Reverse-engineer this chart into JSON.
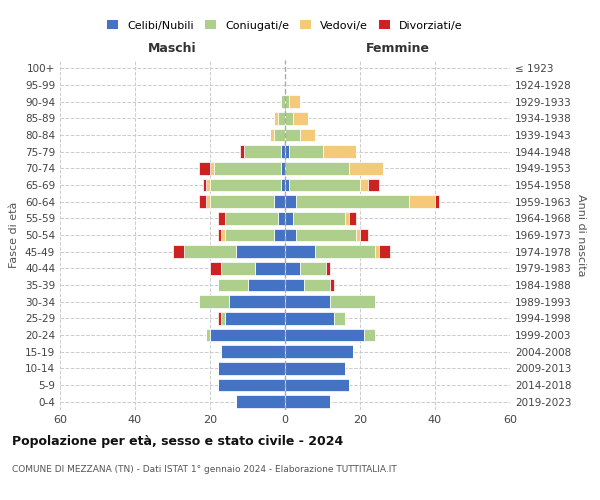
{
  "age_groups": [
    "0-4",
    "5-9",
    "10-14",
    "15-19",
    "20-24",
    "25-29",
    "30-34",
    "35-39",
    "40-44",
    "45-49",
    "50-54",
    "55-59",
    "60-64",
    "65-69",
    "70-74",
    "75-79",
    "80-84",
    "85-89",
    "90-94",
    "95-99",
    "100+"
  ],
  "birth_years": [
    "2019-2023",
    "2014-2018",
    "2009-2013",
    "2004-2008",
    "1999-2003",
    "1994-1998",
    "1989-1993",
    "1984-1988",
    "1979-1983",
    "1974-1978",
    "1969-1973",
    "1964-1968",
    "1959-1963",
    "1954-1958",
    "1949-1953",
    "1944-1948",
    "1939-1943",
    "1934-1938",
    "1929-1933",
    "1924-1928",
    "≤ 1923"
  ],
  "maschi": {
    "celibi": [
      13,
      18,
      18,
      17,
      20,
      16,
      15,
      10,
      8,
      13,
      3,
      2,
      3,
      1,
      1,
      1,
      0,
      0,
      0,
      0,
      0
    ],
    "coniugati": [
      0,
      0,
      0,
      0,
      1,
      1,
      8,
      8,
      9,
      14,
      13,
      14,
      17,
      19,
      18,
      10,
      3,
      2,
      1,
      0,
      0
    ],
    "vedovi": [
      0,
      0,
      0,
      0,
      0,
      0,
      0,
      0,
      0,
      0,
      1,
      0,
      1,
      1,
      1,
      0,
      1,
      1,
      0,
      0,
      0
    ],
    "divorziati": [
      0,
      0,
      0,
      0,
      0,
      1,
      0,
      0,
      3,
      3,
      1,
      2,
      2,
      1,
      3,
      1,
      0,
      0,
      0,
      0,
      0
    ]
  },
  "femmine": {
    "nubili": [
      12,
      17,
      16,
      18,
      21,
      13,
      12,
      5,
      4,
      8,
      3,
      2,
      3,
      1,
      0,
      1,
      0,
      0,
      0,
      0,
      0
    ],
    "coniugate": [
      0,
      0,
      0,
      0,
      3,
      3,
      12,
      7,
      7,
      16,
      16,
      14,
      30,
      19,
      17,
      9,
      4,
      2,
      1,
      0,
      0
    ],
    "vedove": [
      0,
      0,
      0,
      0,
      0,
      0,
      0,
      0,
      0,
      1,
      1,
      1,
      7,
      2,
      9,
      9,
      4,
      4,
      3,
      0,
      0
    ],
    "divorziate": [
      0,
      0,
      0,
      0,
      0,
      0,
      0,
      1,
      1,
      3,
      2,
      2,
      1,
      3,
      0,
      0,
      0,
      0,
      0,
      0,
      0
    ]
  },
  "colors": {
    "celibi": "#4472C4",
    "coniugati": "#AECF8B",
    "vedovi": "#F5C97A",
    "divorziati": "#CC2222"
  },
  "xlim": 60,
  "title": "Popolazione per età, sesso e stato civile - 2024",
  "subtitle": "COMUNE DI MEZZANA (TN) - Dati ISTAT 1° gennaio 2024 - Elaborazione TUTTITALIA.IT",
  "xlabel_left": "Maschi",
  "xlabel_right": "Femmine",
  "ylabel_left": "Fasce di età",
  "ylabel_right": "Anni di nascita",
  "legend_labels": [
    "Celibi/Nubili",
    "Coniugati/e",
    "Vedovi/e",
    "Divorziati/e"
  ]
}
